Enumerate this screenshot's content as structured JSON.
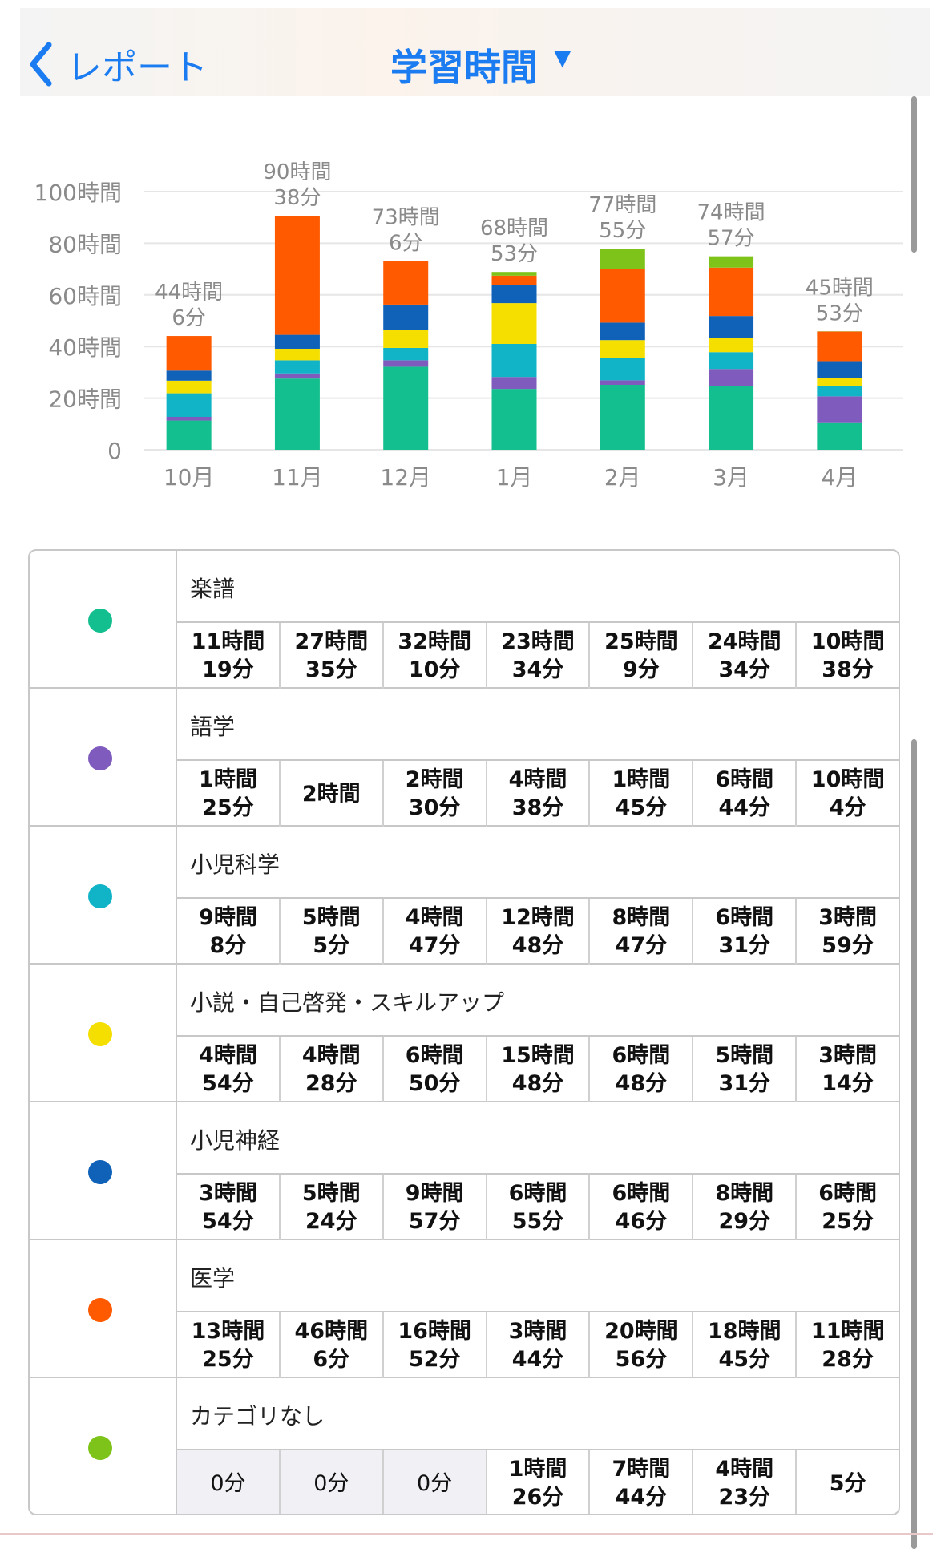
{
  "header": {
    "back_label": "レポート",
    "title": "学習時間"
  },
  "chart_data": {
    "type": "bar",
    "stacked": true,
    "categories": [
      "10月",
      "11月",
      "12月",
      "1月",
      "2月",
      "3月",
      "4月"
    ],
    "yticks": [
      "0",
      "20時間",
      "40時間",
      "60時間",
      "80時間",
      "100時間"
    ],
    "ylim": [
      0,
      100
    ],
    "totals": [
      [
        "44時間",
        "6分"
      ],
      [
        "90時間",
        "38分"
      ],
      [
        "73時間",
        "6分"
      ],
      [
        "68時間",
        "53分"
      ],
      [
        "77時間",
        "55分"
      ],
      [
        "74時間",
        "57分"
      ],
      [
        "45時間",
        "53分"
      ]
    ],
    "series": [
      {
        "name": "楽譜",
        "color": "#13bf8e",
        "values": [
          [
            "11時間",
            "19分"
          ],
          [
            "27時間",
            "35分"
          ],
          [
            "32時間",
            "10分"
          ],
          [
            "23時間",
            "34分"
          ],
          [
            "25時間",
            "9分"
          ],
          [
            "24時間",
            "34分"
          ],
          [
            "10時間",
            "38分"
          ]
        ]
      },
      {
        "name": "語学",
        "color": "#7e5bbd",
        "values": [
          [
            "1時間",
            "25分"
          ],
          [
            "2時間",
            ""
          ],
          [
            "2時間",
            "30分"
          ],
          [
            "4時間",
            "38分"
          ],
          [
            "1時間",
            "45分"
          ],
          [
            "6時間",
            "44分"
          ],
          [
            "10時間",
            "4分"
          ]
        ]
      },
      {
        "name": "小児科学",
        "color": "#10b4c6",
        "values": [
          [
            "9時間",
            "8分"
          ],
          [
            "5時間",
            "5分"
          ],
          [
            "4時間",
            "47分"
          ],
          [
            "12時間",
            "48分"
          ],
          [
            "8時間",
            "47分"
          ],
          [
            "6時間",
            "31分"
          ],
          [
            "3時間",
            "59分"
          ]
        ]
      },
      {
        "name": "小説・自己啓発・スキルアップ",
        "color": "#f5df00",
        "values": [
          [
            "4時間",
            "54分"
          ],
          [
            "4時間",
            "28分"
          ],
          [
            "6時間",
            "50分"
          ],
          [
            "15時間",
            "48分"
          ],
          [
            "6時間",
            "48分"
          ],
          [
            "5時間",
            "31分"
          ],
          [
            "3時間",
            "14分"
          ]
        ]
      },
      {
        "name": "小児神経",
        "color": "#0f62b8",
        "values": [
          [
            "3時間",
            "54分"
          ],
          [
            "5時間",
            "24分"
          ],
          [
            "9時間",
            "57分"
          ],
          [
            "6時間",
            "55分"
          ],
          [
            "6時間",
            "46分"
          ],
          [
            "8時間",
            "29分"
          ],
          [
            "6時間",
            "25分"
          ]
        ]
      },
      {
        "name": "医学",
        "color": "#ff5a00",
        "values": [
          [
            "13時間",
            "25分"
          ],
          [
            "46時間",
            "6分"
          ],
          [
            "16時間",
            "52分"
          ],
          [
            "3時間",
            "44分"
          ],
          [
            "20時間",
            "56分"
          ],
          [
            "18時間",
            "45分"
          ],
          [
            "11時間",
            "28分"
          ]
        ]
      },
      {
        "name": "カテゴリなし",
        "color": "#7dc31a",
        "values": [
          [
            "",
            "0分"
          ],
          [
            "",
            "0分"
          ],
          [
            "",
            "0分"
          ],
          [
            "1時間",
            "26分"
          ],
          [
            "7時間",
            "44分"
          ],
          [
            "4時間",
            "23分"
          ],
          [
            "",
            "5分"
          ]
        ]
      }
    ]
  }
}
